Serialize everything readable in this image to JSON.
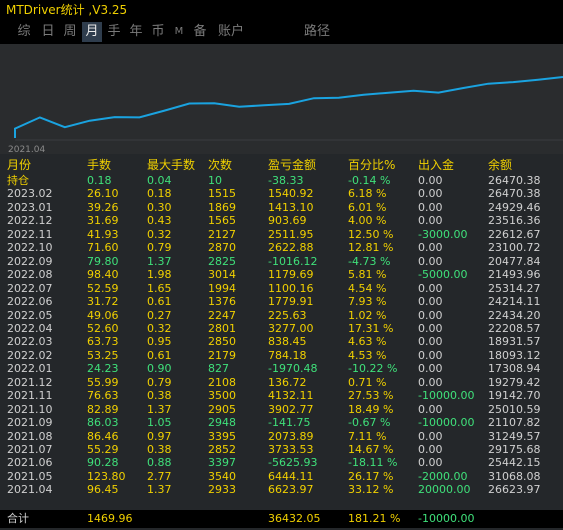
{
  "app": {
    "title": "MTDriver统计 ,V3.25"
  },
  "tabs": [
    {
      "label": "综"
    },
    {
      "label": "日"
    },
    {
      "label": "周"
    },
    {
      "label": "月"
    },
    {
      "label": "手"
    },
    {
      "label": "年"
    },
    {
      "label": "币"
    },
    {
      "label": "M"
    },
    {
      "label": "备"
    },
    {
      "label": "账户"
    },
    {
      "label": "路径"
    }
  ],
  "active_tab": "月",
  "chart_data": {
    "type": "line",
    "x_start_label": "2021.04",
    "series": [
      {
        "color": "#1aa3e0",
        "x": [
          "2021.04",
          "2021.05",
          "2021.06",
          "2021.07",
          "2021.08",
          "2021.09",
          "2021.10",
          "2021.11",
          "2021.12",
          "2022.01",
          "2022.02",
          "2022.03",
          "2022.04",
          "2022.05",
          "2022.06",
          "2022.07",
          "2022.08",
          "2022.09",
          "2022.10",
          "2022.11",
          "2022.12",
          "2023.01",
          "2023.02"
        ],
        "values": [
          26623.97,
          31068.08,
          25442.15,
          29175.68,
          31249.57,
          21107.82,
          25010.59,
          19142.7,
          19279.42,
          17308.94,
          18093.12,
          18931.57,
          22208.57,
          22434.2,
          24214.11,
          25314.27,
          21493.96,
          20477.84,
          23100.72,
          22612.67,
          23516.36,
          24929.46,
          26470.38
        ]
      }
    ]
  },
  "table": {
    "headers": {
      "month": "月份",
      "lots": "手数",
      "max_lots": "最大手数",
      "count": "次数",
      "pnl": "盈亏金额",
      "pct": "百分比%",
      "io": "出入金",
      "balance": "余额"
    },
    "rows": [
      {
        "month": "持仓",
        "lots": "0.18",
        "max_lots": "0.04",
        "count": "10",
        "pnl": "-38.33",
        "pct": "-0.14 %",
        "io": "0.00",
        "balance": "26470.38"
      },
      {
        "month": "2023.02",
        "lots": "26.10",
        "max_lots": "0.18",
        "count": "1515",
        "pnl": "1540.92",
        "pct": "6.18 %",
        "io": "0.00",
        "balance": "26470.38"
      },
      {
        "month": "2023.01",
        "lots": "39.26",
        "max_lots": "0.30",
        "count": "1869",
        "pnl": "1413.10",
        "pct": "6.01 %",
        "io": "0.00",
        "balance": "24929.46"
      },
      {
        "month": "2022.12",
        "lots": "31.69",
        "max_lots": "0.43",
        "count": "1565",
        "pnl": "903.69",
        "pct": "4.00 %",
        "io": "0.00",
        "balance": "23516.36"
      },
      {
        "month": "2022.11",
        "lots": "41.93",
        "max_lots": "0.32",
        "count": "2127",
        "pnl": "2511.95",
        "pct": "12.50 %",
        "io": "-3000.00",
        "balance": "22612.67"
      },
      {
        "month": "2022.10",
        "lots": "71.60",
        "max_lots": "0.79",
        "count": "2870",
        "pnl": "2622.88",
        "pct": "12.81 %",
        "io": "0.00",
        "balance": "23100.72"
      },
      {
        "month": "2022.09",
        "lots": "79.80",
        "max_lots": "1.37",
        "count": "2825",
        "pnl": "-1016.12",
        "pct": "-4.73 %",
        "io": "0.00",
        "balance": "20477.84"
      },
      {
        "month": "2022.08",
        "lots": "98.40",
        "max_lots": "1.98",
        "count": "3014",
        "pnl": "1179.69",
        "pct": "5.81 %",
        "io": "-5000.00",
        "balance": "21493.96"
      },
      {
        "month": "2022.07",
        "lots": "52.59",
        "max_lots": "1.65",
        "count": "1994",
        "pnl": "1100.16",
        "pct": "4.54 %",
        "io": "0.00",
        "balance": "25314.27"
      },
      {
        "month": "2022.06",
        "lots": "31.72",
        "max_lots": "0.61",
        "count": "1376",
        "pnl": "1779.91",
        "pct": "7.93 %",
        "io": "0.00",
        "balance": "24214.11"
      },
      {
        "month": "2022.05",
        "lots": "49.06",
        "max_lots": "0.27",
        "count": "2247",
        "pnl": "225.63",
        "pct": "1.02 %",
        "io": "0.00",
        "balance": "22434.20"
      },
      {
        "month": "2022.04",
        "lots": "52.60",
        "max_lots": "0.32",
        "count": "2801",
        "pnl": "3277.00",
        "pct": "17.31 %",
        "io": "0.00",
        "balance": "22208.57"
      },
      {
        "month": "2022.03",
        "lots": "63.73",
        "max_lots": "0.95",
        "count": "2850",
        "pnl": "838.45",
        "pct": "4.63 %",
        "io": "0.00",
        "balance": "18931.57"
      },
      {
        "month": "2022.02",
        "lots": "53.25",
        "max_lots": "0.61",
        "count": "2179",
        "pnl": "784.18",
        "pct": "4.53 %",
        "io": "0.00",
        "balance": "18093.12"
      },
      {
        "month": "2022.01",
        "lots": "24.23",
        "max_lots": "0.90",
        "count": "827",
        "pnl": "-1970.48",
        "pct": "-10.22 %",
        "io": "0.00",
        "balance": "17308.94"
      },
      {
        "month": "2021.12",
        "lots": "55.99",
        "max_lots": "0.79",
        "count": "2108",
        "pnl": "136.72",
        "pct": "0.71 %",
        "io": "0.00",
        "balance": "19279.42"
      },
      {
        "month": "2021.11",
        "lots": "76.63",
        "max_lots": "0.38",
        "count": "3500",
        "pnl": "4132.11",
        "pct": "27.53 %",
        "io": "-10000.00",
        "balance": "19142.70"
      },
      {
        "month": "2021.10",
        "lots": "82.89",
        "max_lots": "1.37",
        "count": "2905",
        "pnl": "3902.77",
        "pct": "18.49 %",
        "io": "0.00",
        "balance": "25010.59"
      },
      {
        "month": "2021.09",
        "lots": "86.03",
        "max_lots": "1.05",
        "count": "2948",
        "pnl": "-141.75",
        "pct": "-0.67 %",
        "io": "-10000.00",
        "balance": "21107.82"
      },
      {
        "month": "2021.08",
        "lots": "86.46",
        "max_lots": "0.97",
        "count": "3395",
        "pnl": "2073.89",
        "pct": "7.11 %",
        "io": "0.00",
        "balance": "31249.57"
      },
      {
        "month": "2021.07",
        "lots": "55.29",
        "max_lots": "0.38",
        "count": "2852",
        "pnl": "3733.53",
        "pct": "14.67 %",
        "io": "0.00",
        "balance": "29175.68"
      },
      {
        "month": "2021.06",
        "lots": "90.28",
        "max_lots": "0.88",
        "count": "3397",
        "pnl": "-5625.93",
        "pct": "-18.11 %",
        "io": "0.00",
        "balance": "25442.15"
      },
      {
        "month": "2021.05",
        "lots": "123.80",
        "max_lots": "2.77",
        "count": "3540",
        "pnl": "6444.11",
        "pct": "26.17 %",
        "io": "-2000.00",
        "balance": "31068.08"
      },
      {
        "month": "2021.04",
        "lots": "96.45",
        "max_lots": "1.37",
        "count": "2933",
        "pnl": "6623.97",
        "pct": "33.12 %",
        "io": "20000.00",
        "balance": "26623.97"
      }
    ],
    "total": {
      "month": "合计",
      "lots": "1469.96",
      "max_lots": "",
      "count": "",
      "pnl": "36432.05",
      "pct": "181.21 %",
      "io": "-10000.00",
      "balance": ""
    }
  },
  "colors": {
    "title_yellow": "#f0d000",
    "positive_yellow": "#f0d000",
    "negative_green": "#3fe07a",
    "line_blue": "#1aa3e0",
    "table_bg": "#24272a",
    "chart_bg": "#2a2c2e"
  }
}
